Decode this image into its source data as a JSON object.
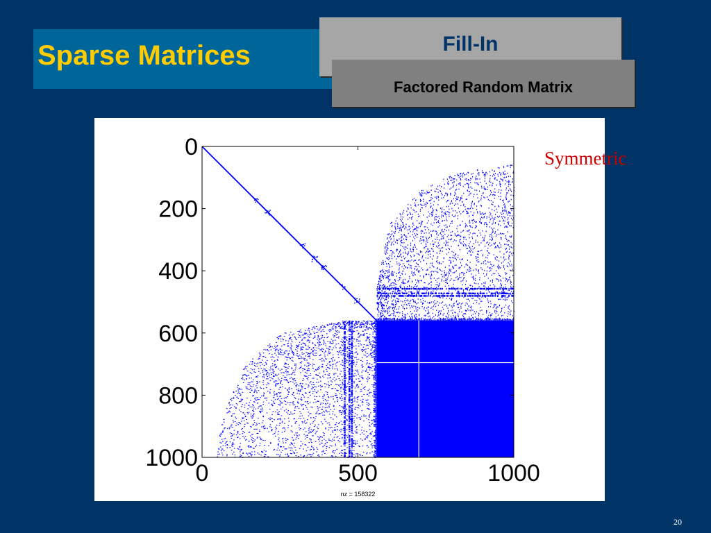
{
  "slide": {
    "title": "Sparse Matrices",
    "heading": "Fill-In",
    "subheading": "Factored Random Matrix",
    "annotation": "Symmetric",
    "page_number": "20"
  },
  "colors": {
    "background": "#003366",
    "title_bar": "#006699",
    "title_text": "#FFCC00",
    "heading_box": "#A6A6A6",
    "heading_text": "#003366",
    "subheading_box": "#808080",
    "annotation": "#CC0000",
    "marks": "#0000FF"
  },
  "chart_data": {
    "type": "scatter",
    "description_label": "nz = 158322",
    "xlim": [
      0,
      1000
    ],
    "ylim": [
      0,
      1000
    ],
    "y_inverted": true,
    "x_ticks": [
      "0",
      "500",
      "1000"
    ],
    "y_ticks": [
      "0",
      "200",
      "400",
      "600",
      "800",
      "1000"
    ],
    "x_tick_values": [
      0,
      500,
      1000
    ],
    "y_tick_values": [
      0,
      200,
      400,
      600,
      800,
      1000
    ],
    "grid": false,
    "regions": {
      "diagonal_end": 565,
      "dense_block": {
        "row_start": 560,
        "row_end": 1000,
        "col_start": 560,
        "col_end": 1000
      },
      "upper_boundary": [
        [
          560,
          450
        ],
        [
          600,
          250
        ],
        [
          700,
          140
        ],
        [
          800,
          90
        ],
        [
          900,
          70
        ],
        [
          1000,
          55
        ]
      ],
      "lower_boundary": [
        [
          450,
          560
        ],
        [
          250,
          600
        ],
        [
          140,
          700
        ],
        [
          90,
          800
        ],
        [
          60,
          900
        ],
        [
          45,
          1000
        ]
      ]
    }
  }
}
